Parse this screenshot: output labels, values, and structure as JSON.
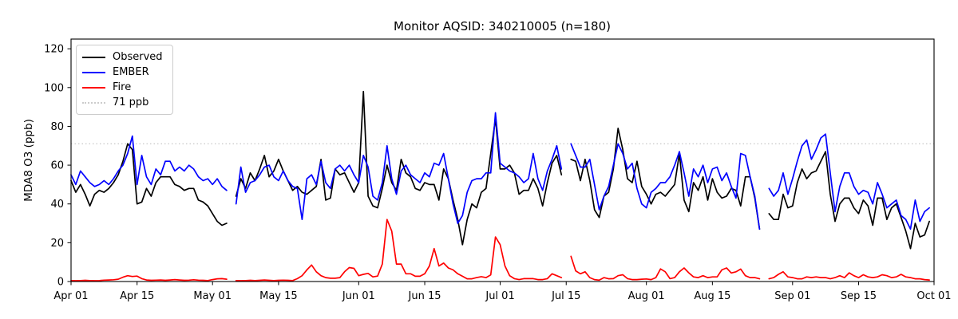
{
  "chart_data": {
    "type": "line",
    "title": "Monitor AQSID: 340210005 (n=180)",
    "ylabel": "MDA8 O3 (ppb)",
    "xlabel": "",
    "ylim": [
      0,
      125
    ],
    "yticks": [
      0,
      20,
      40,
      60,
      80,
      100,
      120
    ],
    "grid": false,
    "x_axis": {
      "num_days": 183,
      "ticks": [
        {
          "day": 0,
          "label": "Apr 01"
        },
        {
          "day": 14,
          "label": "Apr 15"
        },
        {
          "day": 30,
          "label": "May 01"
        },
        {
          "day": 44,
          "label": "May 15"
        },
        {
          "day": 61,
          "label": "Jun 01"
        },
        {
          "day": 75,
          "label": "Jun 15"
        },
        {
          "day": 91,
          "label": "Jul 01"
        },
        {
          "day": 105,
          "label": "Jul 15"
        },
        {
          "day": 122,
          "label": "Aug 01"
        },
        {
          "day": 136,
          "label": "Aug 15"
        },
        {
          "day": 153,
          "label": "Sep 01"
        },
        {
          "day": 167,
          "label": "Sep 15"
        },
        {
          "day": 183,
          "label": "Oct 01"
        }
      ]
    },
    "threshold": {
      "value": 71,
      "label": "71 ppb",
      "color": "#cccccc",
      "style": "dotted"
    },
    "legend": {
      "position": "upper-left",
      "items": [
        "Observed",
        "EMBER",
        "Fire",
        "71 ppb"
      ]
    },
    "series": [
      {
        "name": "Observed",
        "color": "#000000",
        "values": [
          52,
          46,
          50,
          45,
          39,
          45,
          47,
          46,
          48,
          51,
          55,
          62,
          71,
          68,
          40,
          41,
          48,
          44,
          51,
          54,
          54,
          54,
          50,
          49,
          47,
          48,
          48,
          42,
          41,
          39,
          35,
          31,
          29,
          30,
          null,
          44,
          53,
          48,
          56,
          52,
          58,
          65,
          54,
          57,
          63,
          57,
          52,
          47,
          49,
          46,
          45,
          47,
          49,
          63,
          42,
          43,
          58,
          55,
          56,
          51,
          46,
          51,
          98,
          44,
          39,
          38,
          48,
          60,
          51,
          47,
          63,
          56,
          54,
          48,
          47,
          51,
          50,
          50,
          42,
          58,
          53,
          42,
          32,
          19,
          32,
          40,
          38,
          46,
          48,
          66,
          84,
          58,
          58,
          60,
          56,
          45,
          47,
          47,
          53,
          48,
          39,
          51,
          61,
          65,
          55,
          null,
          63,
          62,
          52,
          63,
          52,
          37,
          33,
          44,
          46,
          58,
          79,
          68,
          53,
          51,
          62,
          49,
          45,
          40,
          45,
          46,
          44,
          47,
          50,
          66,
          42,
          36,
          51,
          47,
          54,
          42,
          53,
          46,
          43,
          44,
          48,
          47,
          39,
          54,
          54,
          43,
          27,
          null,
          35,
          32,
          32,
          45,
          38,
          39,
          51,
          58,
          53,
          56,
          57,
          62,
          67,
          45,
          31,
          40,
          43,
          43,
          38,
          35,
          42,
          39,
          29,
          43,
          43,
          32,
          38,
          40,
          33,
          26,
          17,
          30,
          23,
          24,
          31
        ]
      },
      {
        "name": "EMBER",
        "color": "#0000ff",
        "values": [
          55,
          50,
          57,
          54,
          51,
          49,
          50,
          52,
          50,
          53,
          57,
          60,
          66,
          75,
          50,
          65,
          54,
          50,
          58,
          55,
          62,
          62,
          57,
          59,
          57,
          60,
          58,
          54,
          52,
          53,
          50,
          53,
          49,
          47,
          null,
          40,
          59,
          46,
          51,
          52,
          55,
          59,
          60,
          54,
          52,
          57,
          52,
          49,
          48,
          32,
          53,
          55,
          50,
          62,
          51,
          48,
          58,
          60,
          57,
          60,
          55,
          51,
          65,
          59,
          44,
          42,
          51,
          70,
          53,
          45,
          57,
          60,
          55,
          53,
          51,
          56,
          54,
          61,
          60,
          66,
          53,
          40,
          30,
          34,
          46,
          52,
          53,
          53,
          56,
          56,
          87,
          61,
          59,
          57,
          56,
          54,
          51,
          53,
          66,
          53,
          47,
          57,
          63,
          70,
          58,
          null,
          71,
          65,
          59,
          59,
          63,
          50,
          37,
          44,
          49,
          60,
          71,
          66,
          58,
          61,
          48,
          40,
          38,
          46,
          48,
          51,
          51,
          54,
          60,
          67,
          56,
          44,
          58,
          54,
          60,
          51,
          58,
          59,
          52,
          56,
          49,
          43,
          66,
          65,
          54,
          44,
          27,
          null,
          48,
          44,
          47,
          56,
          45,
          53,
          62,
          70,
          73,
          63,
          68,
          74,
          76,
          56,
          36,
          49,
          56,
          56,
          49,
          45,
          47,
          46,
          40,
          51,
          45,
          38,
          40,
          42,
          34,
          32,
          27,
          42,
          31,
          36,
          38
        ]
      },
      {
        "name": "Fire",
        "color": "#ff0000",
        "values": [
          0.5,
          0.4,
          0.5,
          0.6,
          0.5,
          0.4,
          0.5,
          0.7,
          0.8,
          0.9,
          1.2,
          2.2,
          3.0,
          2.6,
          2.8,
          1.5,
          0.8,
          0.6,
          0.7,
          0.8,
          0.6,
          0.8,
          1.0,
          0.8,
          0.6,
          0.7,
          0.9,
          0.7,
          0.6,
          0.5,
          1.0,
          1.4,
          1.5,
          1.2,
          null,
          0.5,
          0.4,
          0.5,
          0.6,
          0.5,
          0.6,
          0.8,
          0.6,
          0.5,
          0.6,
          0.7,
          0.6,
          0.5,
          1.5,
          3.0,
          6.0,
          8.5,
          5.0,
          3.0,
          2.0,
          1.7,
          1.7,
          2.0,
          5.0,
          7.2,
          6.8,
          3.0,
          3.7,
          4.2,
          2.4,
          2.8,
          9.0,
          32.0,
          26.0,
          9.0,
          9.0,
          4.0,
          4.0,
          2.7,
          2.7,
          4.0,
          8.0,
          17.0,
          8.0,
          9.5,
          7.0,
          6.0,
          4.0,
          2.7,
          1.4,
          1.4,
          2.0,
          2.5,
          2.0,
          3.4,
          23.0,
          19.0,
          8.0,
          3.0,
          1.5,
          1.0,
          1.5,
          1.5,
          1.5,
          1.0,
          1.0,
          1.5,
          4.0,
          3.0,
          2.0,
          null,
          13.0,
          5.5,
          4.0,
          5.0,
          2.0,
          1.0,
          0.7,
          2.0,
          1.4,
          1.5,
          3.0,
          3.5,
          1.5,
          1.0,
          1.0,
          1.2,
          1.3,
          1.0,
          2.0,
          6.5,
          5.0,
          1.5,
          2.0,
          5.0,
          7.0,
          4.5,
          2.4,
          2.0,
          3.0,
          2.0,
          2.4,
          2.4,
          6.0,
          7.0,
          4.4,
          5.0,
          6.4,
          3.0,
          2.0,
          2.0,
          1.4,
          null,
          1.4,
          2.0,
          3.7,
          5.0,
          2.4,
          2.0,
          1.4,
          1.4,
          2.4,
          2.0,
          2.4,
          2.0,
          2.0,
          1.4,
          2.0,
          3.0,
          2.0,
          4.5,
          3.0,
          2.0,
          3.5,
          2.4,
          2.0,
          2.4,
          3.5,
          3.0,
          2.0,
          2.4,
          3.7,
          2.4,
          2.0,
          1.4,
          1.4,
          1.0,
          0.8
        ]
      }
    ]
  }
}
